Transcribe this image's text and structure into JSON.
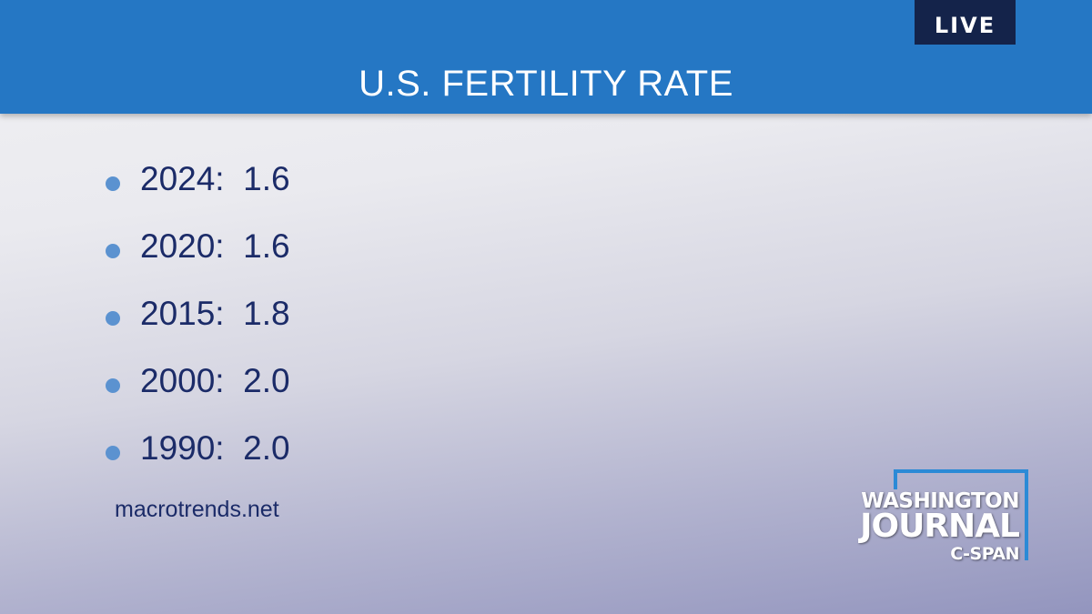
{
  "header": {
    "title": "U.S. FERTILITY RATE",
    "live_badge": "LIVE",
    "bar_color": "#2577c4"
  },
  "stats": [
    {
      "text": "2024:  1.6"
    },
    {
      "text": "2020:  1.6"
    },
    {
      "text": "2015:  1.8"
    },
    {
      "text": "2000:  2.0"
    },
    {
      "text": "1990:  2.0"
    }
  ],
  "source": "macrotrends.net",
  "logo": {
    "line1": "WASHINGTON",
    "line2": "JOURNAL",
    "line3": "C-SPAN",
    "frame_color": "#2b8ad6"
  },
  "colors": {
    "text": "#1b2b68",
    "bullet": "#5b92d0"
  }
}
